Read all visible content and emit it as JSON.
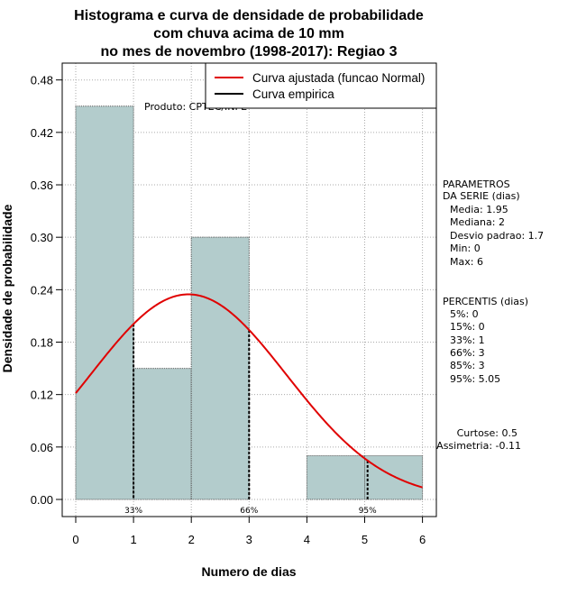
{
  "chart_data": {
    "type": "bar",
    "title_lines": [
      "Histograma e curva de densidade de probabilidade",
      "com chuva acima de 10 mm",
      "no mes de novembro (1998-2017): Regiao 3"
    ],
    "xlabel": "Numero de dias",
    "ylabel": "Densidade de probabilidade",
    "xlim": [
      0,
      6
    ],
    "ylim": [
      0,
      0.48
    ],
    "x_ticks": [
      "0",
      "1",
      "2",
      "3",
      "4",
      "5",
      "6"
    ],
    "y_ticks": [
      "0.00",
      "0.06",
      "0.12",
      "0.18",
      "0.24",
      "0.30",
      "0.36",
      "0.42",
      "0.48"
    ],
    "grid": true,
    "bins": [
      {
        "from": 0,
        "to": 1,
        "density": 0.45
      },
      {
        "from": 1,
        "to": 2,
        "density": 0.15
      },
      {
        "from": 2,
        "to": 3,
        "density": 0.3
      },
      {
        "from": 3,
        "to": 4,
        "density": 0.0
      },
      {
        "from": 4,
        "to": 5,
        "density": 0.05
      },
      {
        "from": 5,
        "to": 6,
        "density": 0.05
      }
    ],
    "normal_fit": {
      "mean": 1.95,
      "sd": 1.7,
      "color": "#e00000"
    },
    "percentile_lines": [
      {
        "x": 1,
        "label": "33%"
      },
      {
        "x": 3,
        "label": "66%"
      },
      {
        "x": 5.05,
        "label": "95%"
      }
    ],
    "legend": {
      "position": "top-right",
      "entries": [
        {
          "label": "Curva ajustada (funcao Normal)",
          "color": "#e00000"
        },
        {
          "label": "Curva empirica",
          "color": "#000000"
        }
      ]
    },
    "colors": {
      "bar_fill": "#b3cccc",
      "grid": "#aaaaaa"
    }
  },
  "product_label": "Produto: CPTEC/INPE",
  "parametros": {
    "header": [
      "PARAMETROS",
      "DA SERIE (dias)"
    ],
    "lines": [
      "Media: 1.95",
      "Mediana: 2",
      "Desvio padrao: 1.7",
      "Min: 0",
      "Max: 6"
    ]
  },
  "percentis": {
    "header": "PERCENTIS (dias)",
    "lines": [
      "5%: 0",
      "15%: 0",
      "33%: 1",
      "66%: 3",
      "85%: 3",
      "95%: 5.05"
    ]
  },
  "shape": {
    "lines": [
      "Curtose: 0.5",
      "Assimetria: -0.11"
    ]
  }
}
